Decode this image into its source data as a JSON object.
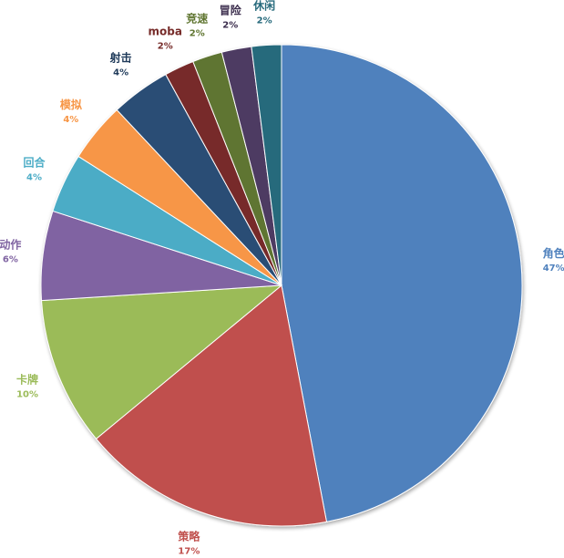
{
  "chart_data": {
    "type": "pie",
    "title": "",
    "slices": [
      {
        "label": "角色",
        "value": 47,
        "pct": "47%",
        "color": "#4f81bd"
      },
      {
        "label": "策略",
        "value": 17,
        "pct": "17%",
        "color": "#c0504d"
      },
      {
        "label": "卡牌",
        "value": 10,
        "pct": "10%",
        "color": "#9bbb59"
      },
      {
        "label": "动作",
        "value": 6,
        "pct": "6%",
        "color": "#8064a2"
      },
      {
        "label": "回合",
        "value": 4,
        "pct": "4%",
        "color": "#4bacc6"
      },
      {
        "label": "模拟",
        "value": 4,
        "pct": "4%",
        "color": "#f79646"
      },
      {
        "label": "射击",
        "value": 4,
        "pct": "4%",
        "color": "#2c4d75"
      },
      {
        "label": "moba",
        "value": 2,
        "pct": "2%",
        "color": "#772c2a"
      },
      {
        "label": "竞速",
        "value": 2,
        "pct": "2%",
        "color": "#5f7530"
      },
      {
        "label": "冒险",
        "value": 2,
        "pct": "2%",
        "color": "#4d3b62"
      },
      {
        "label": "休闲",
        "value": 2,
        "pct": "2%",
        "color": "#276a7c"
      }
    ],
    "label_colors": {
      "角色": "#4f81bd",
      "策略": "#c0504d",
      "卡牌": "#9bbb59",
      "动作": "#8064a2",
      "回合": "#4bacc6",
      "模拟": "#f79646",
      "射击": "#1f3a5a",
      "moba": "#772c2a",
      "竞速": "#5f7530",
      "冒险": "#3b2d4d",
      "休闲": "#276a7c"
    }
  }
}
